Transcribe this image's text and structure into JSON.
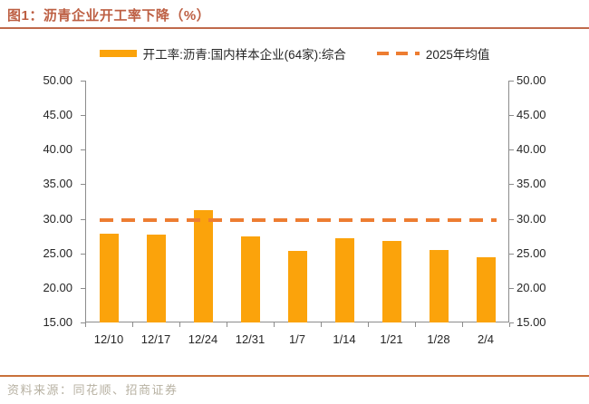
{
  "title": "图1：沥青企业开工率下降（%）",
  "source_note": "资料来源：同花顺、招商证券",
  "colors": {
    "bar": "#FBA30B",
    "dashed_line": "#ED7D31",
    "title": "#BD5F43",
    "title_rule": "#C06A4B",
    "axis": "#8C8C8C",
    "label_text": "#262626",
    "source_line": "#C9713B",
    "source_text": "#B7B1A2",
    "background": "#FFFFFF"
  },
  "chart_data": {
    "type": "bar",
    "title": "图1：沥青企业开工率下降（%）",
    "categories": [
      "12/10",
      "12/17",
      "12/24",
      "12/31",
      "1/7",
      "1/14",
      "1/21",
      "1/28",
      "2/4"
    ],
    "series": [
      {
        "name": "开工率:沥青:国内样本企业(64家):综合",
        "values": [
          27.8,
          27.7,
          31.3,
          27.4,
          25.4,
          27.2,
          26.8,
          25.5,
          24.5
        ]
      }
    ],
    "reference_line": {
      "name": "2025年均值",
      "value": 29.75,
      "style": "dashed"
    },
    "ylim": [
      15,
      50
    ],
    "ytick_step": 5,
    "ytick_labels": [
      "15.00",
      "20.00",
      "25.00",
      "30.00",
      "35.00",
      "40.00",
      "45.00",
      "50.00"
    ],
    "dual_axis": true,
    "grid": false,
    "legend_position": "top",
    "xlabel": "",
    "ylabel": ""
  }
}
